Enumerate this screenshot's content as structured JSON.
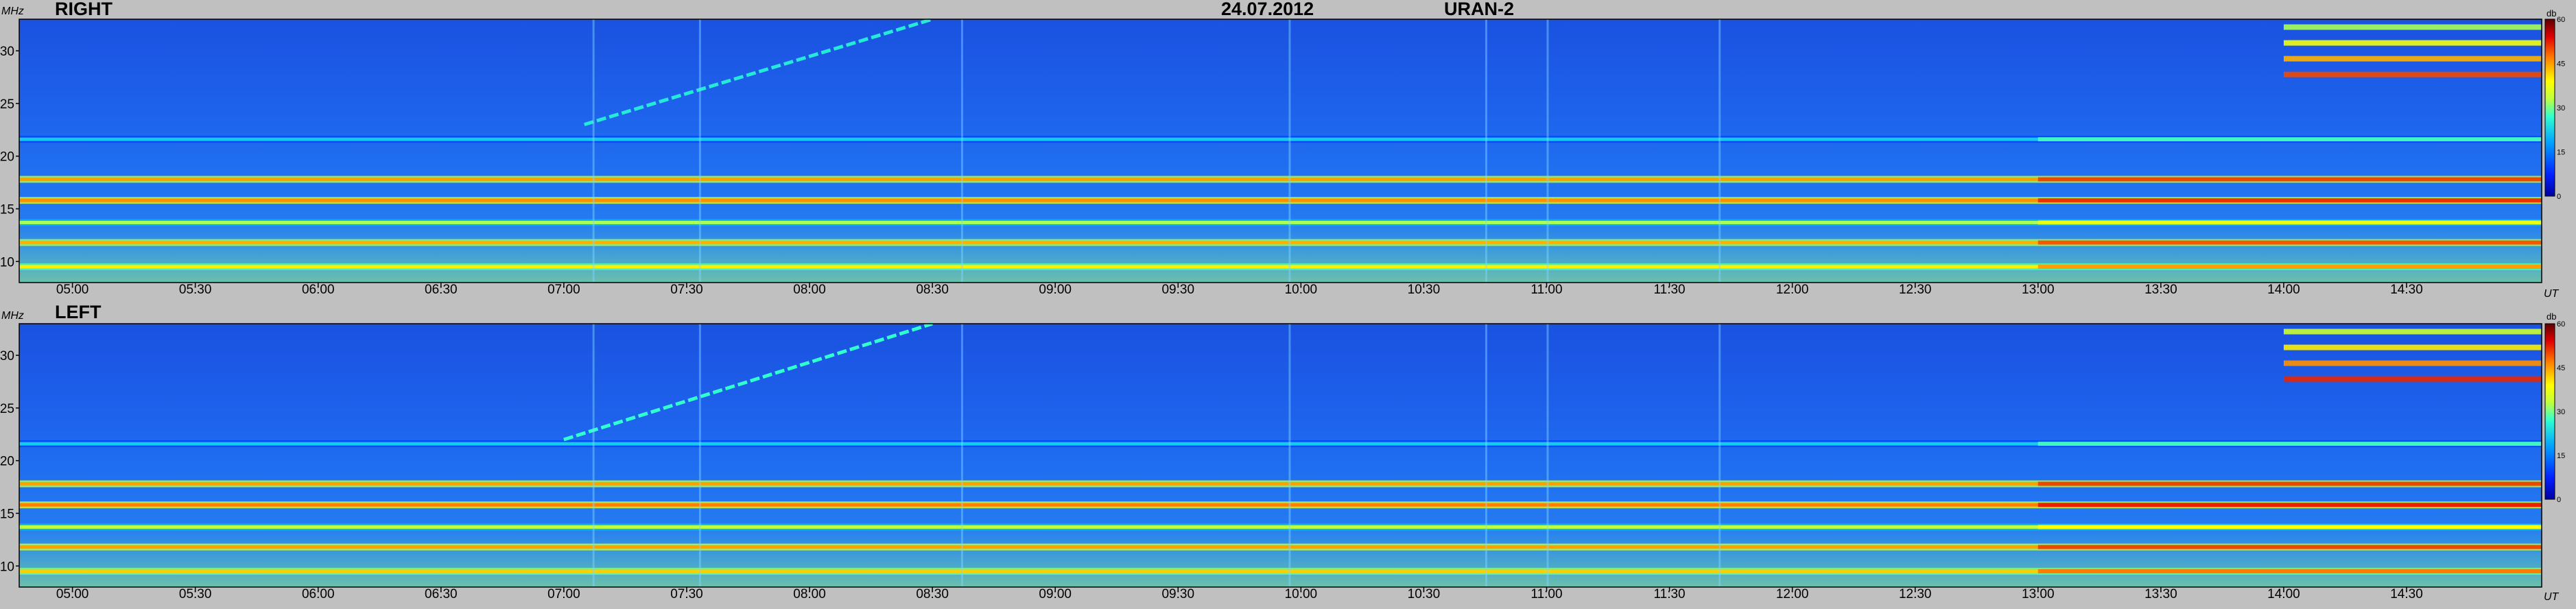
{
  "header": {
    "date": "24.07.2012",
    "instrument": "URAN-2"
  },
  "units": {
    "frequency": "MHz",
    "time": "UT",
    "intensity": "db"
  },
  "chart_data": [
    {
      "type": "heatmap",
      "title": "RIGHT",
      "xlabel": "UT",
      "ylabel": "MHz",
      "x_ticks": [
        "05:00",
        "05:30",
        "06:00",
        "06:30",
        "07:00",
        "07:30",
        "08:00",
        "08:30",
        "09:00",
        "09:30",
        "10:00",
        "10:30",
        "11:00",
        "11:30",
        "12:00",
        "12:30",
        "13:00",
        "13:30",
        "14:00",
        "14:30"
      ],
      "y_ticks": [
        "10",
        "15",
        "20",
        "25",
        "30"
      ],
      "xlim": [
        "04:47",
        "15:03"
      ],
      "ylim": [
        8,
        33
      ],
      "colorbar": {
        "label": "db",
        "ticks": [
          "0",
          "15",
          "30",
          "45",
          "60"
        ],
        "range": [
          0,
          60
        ]
      },
      "background_level_db": 6,
      "bands": [
        {
          "freq_mhz": 9.5,
          "level_db": 40,
          "note": "strong, stronger after 13:00"
        },
        {
          "freq_mhz": 11.8,
          "level_db": 44
        },
        {
          "freq_mhz": 13.7,
          "level_db": 32
        },
        {
          "freq_mhz": 15.8,
          "level_db": 46
        },
        {
          "freq_mhz": 17.8,
          "level_db": 45
        },
        {
          "freq_mhz": 21.6,
          "level_db": 22
        }
      ],
      "bursts": [
        {
          "start": "07:05",
          "end": "08:30",
          "freq_start_mhz": 23,
          "freq_end_mhz": 33,
          "level_db": 25
        },
        {
          "start": "14:00",
          "end": "15:03",
          "freq_start_mhz": 27,
          "freq_end_mhz": 33,
          "level_db": 50
        }
      ]
    },
    {
      "type": "heatmap",
      "title": "LEFT",
      "xlabel": "UT",
      "ylabel": "MHz",
      "x_ticks": [
        "05:00",
        "05:30",
        "06:00",
        "06:30",
        "07:00",
        "07:30",
        "08:00",
        "08:30",
        "09:00",
        "09:30",
        "10:00",
        "10:30",
        "11:00",
        "11:30",
        "12:00",
        "12:30",
        "13:00",
        "13:30",
        "14:00",
        "14:30"
      ],
      "y_ticks": [
        "10",
        "15",
        "20",
        "25",
        "30"
      ],
      "xlim": [
        "04:47",
        "15:03"
      ],
      "ylim": [
        8,
        33
      ],
      "colorbar": {
        "label": "db",
        "ticks": [
          "0",
          "15",
          "30",
          "45",
          "60"
        ],
        "range": [
          0,
          60
        ]
      },
      "background_level_db": 6,
      "bands": [
        {
          "freq_mhz": 9.5,
          "level_db": 42,
          "note": "strong, stronger after 13:00"
        },
        {
          "freq_mhz": 11.8,
          "level_db": 45
        },
        {
          "freq_mhz": 13.7,
          "level_db": 33
        },
        {
          "freq_mhz": 15.8,
          "level_db": 47
        },
        {
          "freq_mhz": 17.8,
          "level_db": 45
        },
        {
          "freq_mhz": 21.6,
          "level_db": 22
        }
      ],
      "bursts": [
        {
          "start": "07:00",
          "end": "08:30",
          "freq_start_mhz": 22,
          "freq_end_mhz": 33,
          "level_db": 27
        },
        {
          "start": "14:00",
          "end": "15:03",
          "freq_start_mhz": 27,
          "freq_end_mhz": 33,
          "level_db": 52
        }
      ]
    }
  ]
}
